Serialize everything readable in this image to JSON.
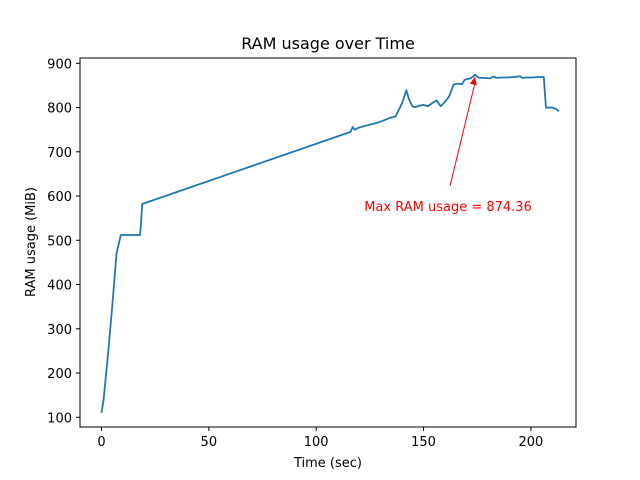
{
  "chart_data": {
    "type": "line",
    "title": "RAM usage over Time",
    "xlabel": "Time (sec)",
    "ylabel": "RAM usage (MiB)",
    "xlim": [
      -10,
      221
    ],
    "ylim": [
      78,
      912
    ],
    "xticks": [
      0,
      50,
      100,
      150,
      200
    ],
    "yticks": [
      100,
      200,
      300,
      400,
      500,
      600,
      700,
      800,
      900
    ],
    "grid": false,
    "line_color": "#1f77b4",
    "series": [
      {
        "x": [
          0,
          1,
          3,
          5,
          7,
          9,
          10,
          14,
          17,
          18,
          19,
          116,
          117,
          118,
          120,
          124,
          128,
          131,
          134,
          137,
          140,
          142,
          143,
          144,
          145,
          146,
          148,
          150,
          152,
          154,
          156,
          158,
          159,
          160,
          162,
          164,
          166,
          168,
          169,
          170,
          172,
          174,
          175,
          176,
          178,
          181,
          182,
          183,
          184,
          186,
          189,
          192,
          194,
          195,
          196,
          198,
          201,
          203,
          205,
          206,
          207,
          209,
          210,
          212,
          213
        ],
        "y": [
          110,
          140,
          240,
          350,
          470,
          512,
          512,
          512,
          512,
          512,
          582,
          745,
          756,
          750,
          755,
          760,
          765,
          770,
          776,
          780,
          810,
          839,
          822,
          810,
          802,
          801,
          804,
          806,
          803,
          810,
          816,
          803,
          808,
          813,
          826,
          852,
          854,
          853,
          862,
          864,
          866,
          874.36,
          870,
          867,
          867,
          866,
          869,
          870,
          867,
          868,
          868,
          869,
          870,
          871,
          867,
          868,
          868,
          869,
          869,
          869,
          800,
          800,
          800,
          796,
          791
        ]
      }
    ],
    "annotation": {
      "text": "Max RAM usage = 874.36",
      "point": [
        174,
        874.36
      ],
      "text_pos": [
        167,
        578
      ],
      "color": "#ff0000"
    }
  }
}
